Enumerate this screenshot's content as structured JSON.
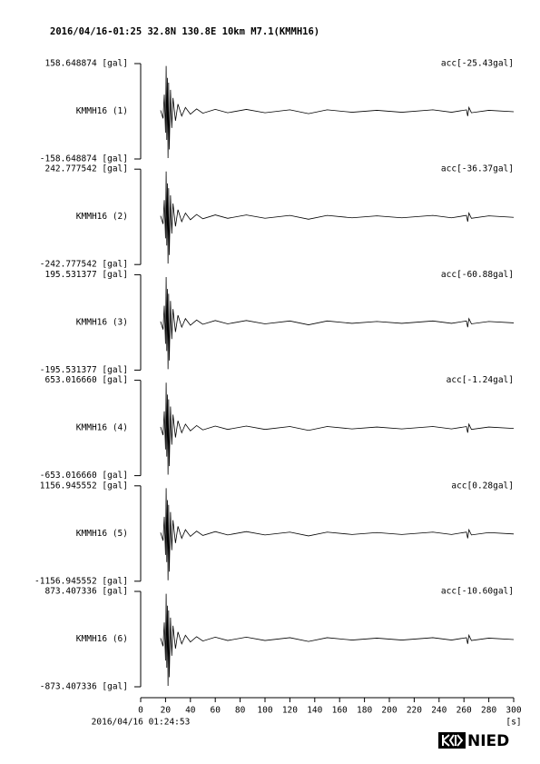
{
  "title": "2016/04/16-01:25 32.8N 130.8E 10km M7.1(KMMH16)",
  "logo": "NIED",
  "chart_data": [
    {
      "type": "line",
      "trace_label": "KMMH16 (1)",
      "annotation": "acc[-25.43gal]",
      "ylim": [
        -158.648874,
        158.648874
      ],
      "yticks": [
        {
          "value": 158.648874,
          "label": "158.648874 [gal]"
        },
        {
          "value": -158.648874,
          "label": "-158.648874 [gal]"
        }
      ],
      "x": [
        16,
        18,
        19,
        20,
        20.5,
        21,
        21.5,
        22,
        22.5,
        23,
        24,
        25,
        26,
        28,
        30,
        33,
        36,
        40,
        45,
        50,
        60,
        70,
        85,
        100,
        120,
        135,
        150,
        170,
        190,
        210,
        235,
        250,
        262,
        263,
        264,
        266,
        280,
        300
      ],
      "values": [
        3.2,
        -23.8,
        55.5,
        -71.4,
        150.7,
        -95.2,
        111.1,
        -155.5,
        95.2,
        -126.9,
        71.4,
        -55.5,
        44.4,
        -31.7,
        23.8,
        -15.9,
        12.7,
        -9.5,
        7.9,
        -6.3,
        6.3,
        -4.8,
        6.3,
        -4.8,
        4.8,
        -7.9,
        4.8,
        -3.2,
        3.2,
        -3.2,
        4.8,
        -3.2,
        4.8,
        -15.9,
        12.7,
        -4.8,
        3.2,
        -1.6
      ],
      "color": "#000000"
    },
    {
      "type": "line",
      "trace_label": "KMMH16 (2)",
      "annotation": "acc[-36.37gal]",
      "ylim": [
        -242.777542,
        242.777542
      ],
      "yticks": [
        {
          "value": 242.777542,
          "label": "242.777542 [gal]"
        },
        {
          "value": -242.777542,
          "label": "-242.777542 [gal]"
        }
      ],
      "x": [
        16,
        18,
        19,
        20,
        20.5,
        21,
        21.5,
        22,
        22.5,
        23,
        24,
        25,
        26,
        28,
        30,
        33,
        36,
        40,
        45,
        50,
        60,
        70,
        85,
        100,
        120,
        135,
        150,
        170,
        190,
        210,
        235,
        250,
        262,
        263,
        264,
        266,
        280,
        300
      ],
      "values": [
        4.9,
        -36.4,
        85,
        -109.3,
        230.7,
        -145.7,
        170,
        -237.9,
        145.7,
        -194.2,
        109.3,
        -85,
        68,
        -48.6,
        36.4,
        -24.3,
        19.4,
        -14.6,
        12.1,
        -9.7,
        9.7,
        -7.3,
        9.7,
        -7.3,
        7.3,
        -12.1,
        7.3,
        -4.9,
        4.9,
        -4.9,
        7.3,
        -4.9,
        7.3,
        -24.3,
        19.4,
        -7.3,
        4.9,
        -2.4
      ],
      "color": "#000000"
    },
    {
      "type": "line",
      "trace_label": "KMMH16 (3)",
      "annotation": "acc[-60.88gal]",
      "ylim": [
        -195.531377,
        195.531377
      ],
      "yticks": [
        {
          "value": 195.531377,
          "label": "195.531377 [gal]"
        },
        {
          "value": -195.531377,
          "label": "-195.531377 [gal]"
        }
      ],
      "x": [
        16,
        18,
        19,
        20,
        20.5,
        21,
        21.5,
        22,
        22.5,
        23,
        24,
        25,
        26,
        28,
        30,
        33,
        36,
        40,
        45,
        50,
        60,
        70,
        85,
        100,
        120,
        135,
        150,
        170,
        190,
        210,
        235,
        250,
        262,
        263,
        264,
        266,
        280,
        300
      ],
      "values": [
        3.9,
        -29.3,
        68.4,
        -88,
        185.7,
        -117.3,
        136.9,
        -191.6,
        117.3,
        -156.4,
        88,
        -68.4,
        54.7,
        -39.1,
        29.3,
        -19.6,
        15.6,
        -11.7,
        9.8,
        -7.8,
        7.8,
        -5.9,
        7.8,
        -5.9,
        5.9,
        -9.8,
        5.9,
        -3.9,
        3.9,
        -3.9,
        5.9,
        -3.9,
        5.9,
        -19.6,
        15.6,
        -5.9,
        3.9,
        -2
      ],
      "color": "#000000"
    },
    {
      "type": "line",
      "trace_label": "KMMH16 (4)",
      "annotation": "acc[-1.24gal]",
      "ylim": [
        -653.01666,
        653.01666
      ],
      "yticks": [
        {
          "value": 653.01666,
          "label": "653.016660 [gal]"
        },
        {
          "value": -653.01666,
          "label": "-653.016660 [gal]"
        }
      ],
      "x": [
        16,
        18,
        19,
        20,
        20.5,
        21,
        21.5,
        22,
        22.5,
        23,
        24,
        25,
        26,
        28,
        30,
        33,
        36,
        40,
        45,
        50,
        60,
        70,
        85,
        100,
        120,
        135,
        150,
        170,
        190,
        210,
        235,
        250,
        262,
        263,
        264,
        266,
        280,
        300
      ],
      "values": [
        13.1,
        -98,
        228.6,
        -293.9,
        620.4,
        -391.8,
        457.1,
        -640,
        391.8,
        -522.4,
        293.9,
        -228.6,
        182.8,
        -130.6,
        98,
        -65.3,
        52.2,
        -39.2,
        32.7,
        -26.1,
        26.1,
        -19.6,
        26.1,
        -19.6,
        19.6,
        -32.7,
        19.6,
        -13.1,
        13.1,
        -13.1,
        19.6,
        -13.1,
        19.6,
        -65.3,
        52.2,
        -19.6,
        13.1,
        -6.5
      ],
      "color": "#000000"
    },
    {
      "type": "line",
      "trace_label": "KMMH16 (5)",
      "annotation": "acc[0.28gal]",
      "ylim": [
        -1156.945552,
        1156.945552
      ],
      "yticks": [
        {
          "value": 1156.945552,
          "label": "1156.945552 [gal]"
        },
        {
          "value": -1156.945552,
          "label": "-1156.945552 [gal]"
        }
      ],
      "x": [
        16,
        18,
        19,
        20,
        20.5,
        21,
        21.5,
        22,
        22.5,
        23,
        24,
        25,
        26,
        28,
        30,
        33,
        36,
        40,
        45,
        50,
        60,
        70,
        85,
        100,
        120,
        135,
        150,
        170,
        190,
        210,
        235,
        250,
        262,
        263,
        264,
        266,
        280,
        300
      ],
      "values": [
        23.1,
        -173.5,
        404.9,
        -520.6,
        1099.1,
        -694.1,
        809.8,
        -1133.8,
        694.1,
        -925.5,
        520.6,
        -404.9,
        323.9,
        -231.4,
        173.5,
        -115.7,
        92.6,
        -69.4,
        57.8,
        -46.3,
        46.3,
        -34.7,
        46.3,
        -34.7,
        34.7,
        -57.8,
        34.7,
        -23.1,
        23.1,
        -23.1,
        34.7,
        -23.1,
        34.7,
        -115.7,
        92.6,
        -34.7,
        23.1,
        -11.6
      ],
      "color": "#000000"
    },
    {
      "type": "line",
      "trace_label": "KMMH16 (6)",
      "annotation": "acc[-10.60gal]",
      "ylim": [
        -873.407336,
        873.407336
      ],
      "yticks": [
        {
          "value": 873.407336,
          "label": "873.407336 [gal]"
        },
        {
          "value": -873.407336,
          "label": "-873.407336 [gal]"
        }
      ],
      "x": [
        16,
        18,
        19,
        20,
        20.5,
        21,
        21.5,
        22,
        22.5,
        23,
        24,
        25,
        26,
        28,
        30,
        33,
        36,
        40,
        45,
        50,
        60,
        70,
        85,
        100,
        120,
        135,
        150,
        170,
        190,
        210,
        235,
        250,
        262,
        263,
        264,
        266,
        280,
        300
      ],
      "values": [
        17.5,
        -131,
        305.7,
        -393,
        829.7,
        -524,
        611.4,
        -855.9,
        524,
        -698.7,
        393,
        -305.7,
        244.6,
        -174.7,
        131,
        -87.3,
        69.9,
        -52.4,
        43.7,
        -34.9,
        34.9,
        -26.2,
        34.9,
        -26.2,
        26.2,
        -43.7,
        26.2,
        -17.5,
        17.5,
        -17.5,
        26.2,
        -17.5,
        26.2,
        -87.3,
        69.9,
        -26.2,
        17.5,
        -8.7
      ],
      "color": "#000000",
      "xlim": [
        0,
        300
      ],
      "xticks": [
        0,
        20,
        40,
        60,
        80,
        100,
        120,
        140,
        160,
        180,
        200,
        220,
        240,
        260,
        280,
        300
      ],
      "xlabel": "[s]",
      "start_time": "2016/04/16 01:24:53"
    }
  ]
}
